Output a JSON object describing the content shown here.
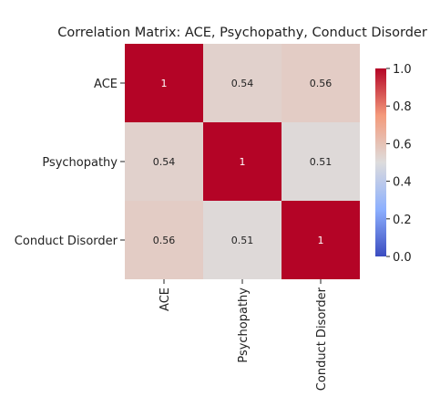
{
  "chart_data": {
    "type": "heatmap",
    "title": "Correlation Matrix: ACE, Psychopathy, Conduct Disorder",
    "row_labels": [
      "ACE",
      "Psychopathy",
      "Conduct Disorder"
    ],
    "col_labels": [
      "ACE",
      "Psychopathy",
      "Conduct Disorder"
    ],
    "values": [
      [
        1.0,
        0.54,
        0.56
      ],
      [
        0.54,
        1.0,
        0.51
      ],
      [
        0.56,
        0.51,
        1.0
      ]
    ],
    "cell_labels": [
      [
        "1",
        "0.54",
        "0.56"
      ],
      [
        "0.54",
        "1",
        "0.51"
      ],
      [
        "0.56",
        "0.51",
        "1"
      ]
    ],
    "colormap": "coolwarm",
    "color_range": [
      0.0,
      1.0
    ],
    "colorbar_ticks": [
      "0.0",
      "0.2",
      "0.4",
      "0.6",
      "0.8",
      "1.0"
    ],
    "colors": {
      "high": "#b40426",
      "mid": "#dddcdc",
      "low": "#3b4cc0"
    }
  }
}
